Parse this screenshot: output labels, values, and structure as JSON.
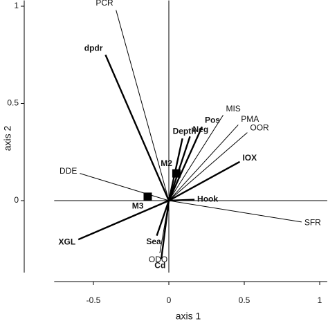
{
  "chart_data": {
    "type": "biplot",
    "xlabel": "axis 1",
    "ylabel": "axis 2",
    "xlim": [
      -0.76,
      1.05
    ],
    "ylim": [
      -0.37,
      1.03
    ],
    "xticks": [
      -0.5,
      0,
      0.5,
      1
    ],
    "yticks": [
      0,
      0.5,
      1
    ],
    "color": "#000000",
    "vectors": [
      {
        "name": "PCR",
        "x": -0.35,
        "y": 0.98,
        "bold": false
      },
      {
        "name": "dpdr",
        "x": -0.42,
        "y": 0.75,
        "bold": true
      },
      {
        "name": "MIS",
        "x": 0.36,
        "y": 0.44,
        "bold": false
      },
      {
        "name": "PMA",
        "x": 0.46,
        "y": 0.39,
        "bold": false
      },
      {
        "name": "OOR",
        "x": 0.52,
        "y": 0.35,
        "bold": false
      },
      {
        "name": "Pos",
        "x": 0.22,
        "y": 0.38,
        "bold": true
      },
      {
        "name": "Neg",
        "x": 0.14,
        "y": 0.33,
        "bold": true
      },
      {
        "name": "Depth",
        "x": 0.09,
        "y": 0.32,
        "bold": true
      },
      {
        "name": "IOX",
        "x": 0.47,
        "y": 0.2,
        "bold": true
      },
      {
        "name": "Hook",
        "x": 0.17,
        "y": 0.005,
        "bold": true
      },
      {
        "name": "SFR",
        "x": 0.88,
        "y": -0.11,
        "bold": false
      },
      {
        "name": "DDE",
        "x": -0.59,
        "y": 0.14,
        "bold": false
      },
      {
        "name": "XGL",
        "x": -0.6,
        "y": -0.2,
        "bold": true
      },
      {
        "name": "Sea",
        "x": -0.08,
        "y": -0.18,
        "bold": true
      },
      {
        "name": "ODO",
        "x": -0.06,
        "y": -0.27,
        "bold": false
      },
      {
        "name": "Cd",
        "x": -0.05,
        "y": -0.3,
        "bold": true
      }
    ],
    "points": [
      {
        "name": "M2",
        "x": 0.05,
        "y": 0.14
      },
      {
        "name": "M3",
        "x": -0.14,
        "y": 0.02
      }
    ]
  }
}
